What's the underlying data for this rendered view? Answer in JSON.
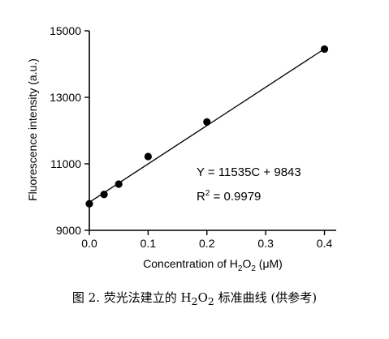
{
  "chart_data": {
    "type": "scatter",
    "xlabel_prefix": "Concentration of H",
    "xlabel_sub1": "2",
    "xlabel_mid": "O",
    "xlabel_sub2": "2",
    "xlabel_suffix": " (μM)",
    "ylabel": "Fluorescence intensity (a.u.)",
    "xlim": [
      0.0,
      0.42
    ],
    "ylim": [
      9000,
      15000
    ],
    "x_ticks": [
      0.0,
      0.1,
      0.2,
      0.3,
      0.4
    ],
    "x_tick_labels": [
      "0.0",
      "0.1",
      "0.2",
      "0.3",
      "0.4"
    ],
    "y_ticks": [
      9000,
      11000,
      13000,
      15000
    ],
    "y_tick_labels": [
      "9000",
      "11000",
      "13000",
      "15000"
    ],
    "points": [
      {
        "x": 0.0,
        "y": 9800
      },
      {
        "x": 0.025,
        "y": 10080
      },
      {
        "x": 0.05,
        "y": 10390
      },
      {
        "x": 0.1,
        "y": 11220
      },
      {
        "x": 0.2,
        "y": 12260
      },
      {
        "x": 0.4,
        "y": 14450
      }
    ],
    "fit": {
      "slope": 11535,
      "intercept": 9843
    },
    "equation_text": "Y = 11535C + 9843",
    "r2_prefix": "R",
    "r2_sup": "2",
    "r2_suffix": " = 0.9979",
    "grid": false,
    "marker_color": "#000000",
    "line_color": "#000000"
  },
  "caption": {
    "prefix": "图 2. 荧光法建立的 H",
    "sub1": "2",
    "mid": "O",
    "sub2": "2",
    "suffix": " 标准曲线 (供参考)"
  }
}
